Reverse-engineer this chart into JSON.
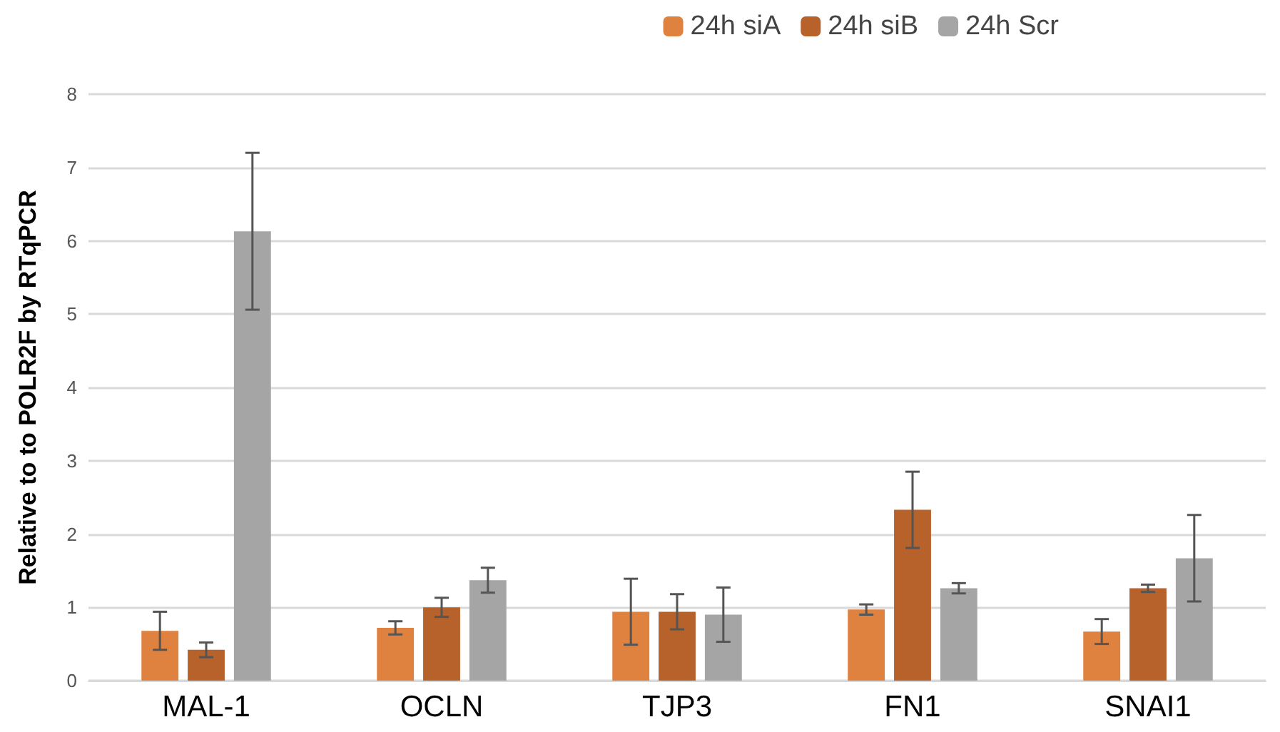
{
  "chart_data": {
    "type": "bar",
    "ylabel": "Relative to to POLR2F by RTqPCR",
    "categories": [
      "MAL-1",
      "OCLN",
      "TJP3",
      "FN1",
      "SNAI1"
    ],
    "series": [
      {
        "name": "24h siA",
        "color": "#e0823f",
        "values": [
          0.68,
          0.72,
          0.94,
          0.97,
          0.67
        ],
        "errors": [
          0.26,
          0.09,
          0.45,
          0.07,
          0.17
        ]
      },
      {
        "name": "24h siB",
        "color": "#b7612b",
        "values": [
          0.42,
          1.0,
          0.94,
          2.33,
          1.26
        ],
        "errors": [
          0.1,
          0.13,
          0.24,
          0.52,
          0.05
        ]
      },
      {
        "name": "24h Scr",
        "color": "#a5a5a5",
        "values": [
          6.13,
          1.37,
          0.9,
          1.26,
          1.67
        ],
        "errors": [
          1.07,
          0.17,
          0.37,
          0.07,
          0.59
        ]
      }
    ],
    "ylim": [
      0,
      8
    ],
    "yticks": [
      0,
      1,
      2,
      3,
      4,
      5,
      6,
      7,
      8
    ],
    "grid": "y",
    "legend": "top right"
  }
}
